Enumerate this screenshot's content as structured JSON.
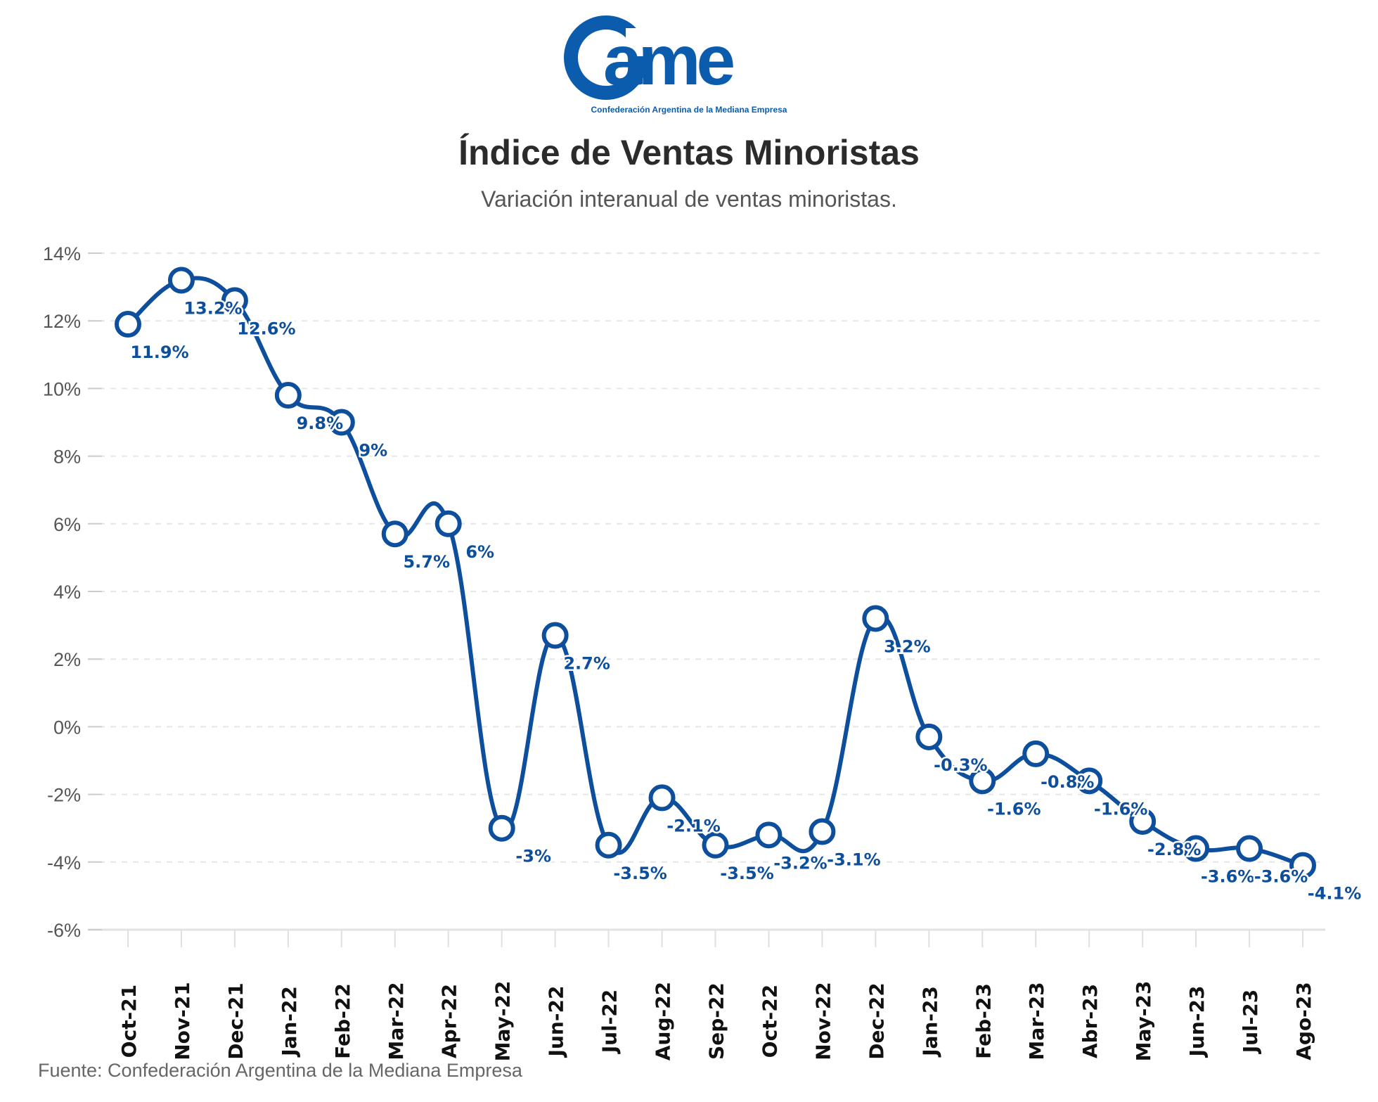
{
  "logo": {
    "text": "came",
    "tagline": "Confederación Argentina de la Mediana Empresa",
    "color": "#0b5cad"
  },
  "chart_data": {
    "type": "line",
    "title": "Índice de Ventas Minoristas",
    "subtitle": "Variación interanual de ventas minoristas.",
    "categories": [
      "Oct-21",
      "Nov-21",
      "Dec-21",
      "Jan-22",
      "Feb-22",
      "Mar-22",
      "Apr-22",
      "May-22",
      "Jun-22",
      "Jul-22",
      "Aug-22",
      "Sep-22",
      "Oct-22",
      "Nov-22",
      "Dec-22",
      "Jan-23",
      "Feb-23",
      "Mar-23",
      "Abr-23",
      "May-23",
      "Jun-23",
      "Jul-23",
      "Ago-23"
    ],
    "values": [
      11.9,
      13.2,
      12.6,
      9.8,
      9,
      5.7,
      6,
      -3,
      2.7,
      -3.5,
      -2.1,
      -3.5,
      -3.2,
      -3.1,
      3.2,
      -0.3,
      -1.6,
      -0.8,
      -1.6,
      -2.8,
      -3.6,
      -3.6,
      -4.1
    ],
    "data_labels": [
      "11.9%",
      "13.2%",
      "12.6%",
      "9.8%",
      "9%",
      "5.7%",
      "6%",
      "-3%",
      "2.7%",
      "-3.5%",
      "-2.1%",
      "-3.5%",
      "-3.2%",
      "-3.1%",
      "3.2%",
      "-0.3%",
      "-1.6%",
      "-0.8%",
      "-1.6%",
      "-2.8%",
      "-3.6%",
      "-3.6%",
      "-4.1%"
    ],
    "ylim": [
      -6,
      14
    ],
    "yticks": [
      14,
      12,
      10,
      8,
      6,
      4,
      2,
      0,
      -2,
      -4,
      -6
    ],
    "ytick_labels": [
      "14%",
      "12%",
      "10%",
      "8%",
      "6%",
      "4%",
      "2%",
      "0%",
      "-2%",
      "-4%",
      "-6%"
    ],
    "xlabel": "",
    "ylabel": "",
    "grid": true,
    "color": "#0d4f9c"
  },
  "source": "Fuente: Confederación Argentina de la Mediana Empresa"
}
